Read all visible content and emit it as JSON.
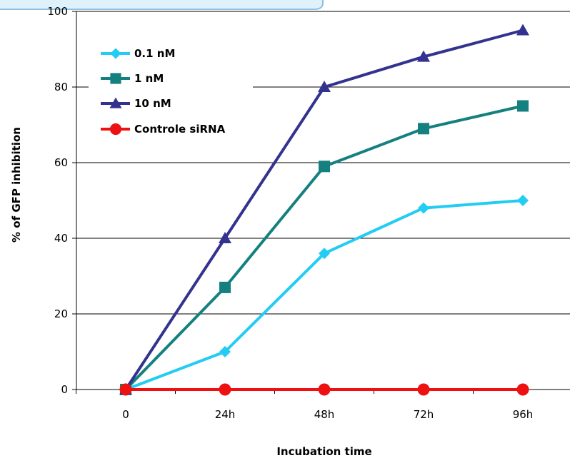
{
  "chart_data": {
    "type": "line",
    "categories": [
      "0",
      "24h",
      "48h",
      "72h",
      "96h"
    ],
    "xlabel": "Incubation time",
    "ylabel": "% of GFP inhibition",
    "ylim": [
      0,
      100
    ],
    "yticks": [
      0,
      20,
      40,
      60,
      80,
      100
    ],
    "grid": true,
    "legend_position": "top-left",
    "series": [
      {
        "name": "0.1 nM",
        "color": "#22ccf2",
        "marker": "diamond",
        "values": [
          0,
          10,
          36,
          48,
          50
        ]
      },
      {
        "name": "1 nM",
        "color": "#158080",
        "marker": "square",
        "values": [
          0,
          27,
          59,
          69,
          75
        ]
      },
      {
        "name": "10 nM",
        "color": "#33338f",
        "marker": "triangle",
        "values": [
          0,
          40,
          80,
          88,
          95
        ]
      },
      {
        "name": "Controle siRNA",
        "color": "#ee1111",
        "marker": "circle",
        "values": [
          0,
          0,
          0,
          0,
          0
        ]
      }
    ]
  },
  "decor": {
    "banner_fill": "#dff1fb",
    "banner_stroke": "#8fc0e0"
  }
}
